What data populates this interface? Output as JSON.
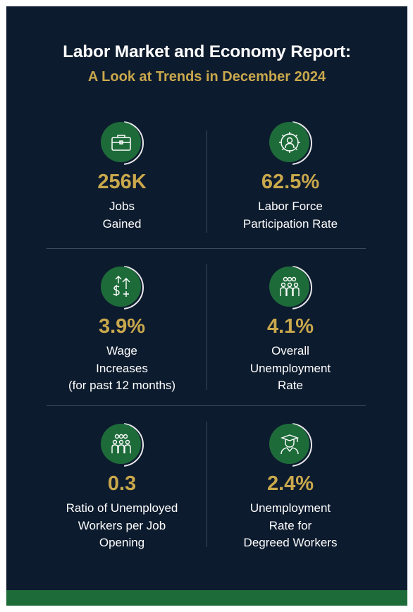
{
  "report": {
    "title": "Labor Market and Economy Report:",
    "subtitle": "A Look at Trends in December 2024"
  },
  "colors": {
    "background": "#0d1b2e",
    "accent_gold": "#c9a84c",
    "accent_green": "#1e6b3a",
    "text": "#ffffff"
  },
  "stats": [
    {
      "icon": "briefcase-icon",
      "value": "256K",
      "label_lines": [
        "Jobs",
        "Gained"
      ]
    },
    {
      "icon": "gear-person-icon",
      "value": "62.5%",
      "label_lines": [
        "Labor Force",
        "Participation Rate"
      ]
    },
    {
      "icon": "dollar-arrows-icon",
      "value": "3.9%",
      "label_lines": [
        "Wage",
        "Increases",
        "(for past 12 months)"
      ]
    },
    {
      "icon": "group-people-icon",
      "value": "4.1%",
      "label_lines": [
        "Overall",
        "Unemployment",
        "Rate"
      ]
    },
    {
      "icon": "group-people-icon",
      "value": "0.3",
      "label_lines": [
        "Ratio of Unemployed",
        "Workers per Job",
        "Opening"
      ]
    },
    {
      "icon": "graduate-icon",
      "value": "2.4%",
      "label_lines": [
        "Unemployment",
        "Rate for",
        "Degreed Workers"
      ]
    }
  ]
}
